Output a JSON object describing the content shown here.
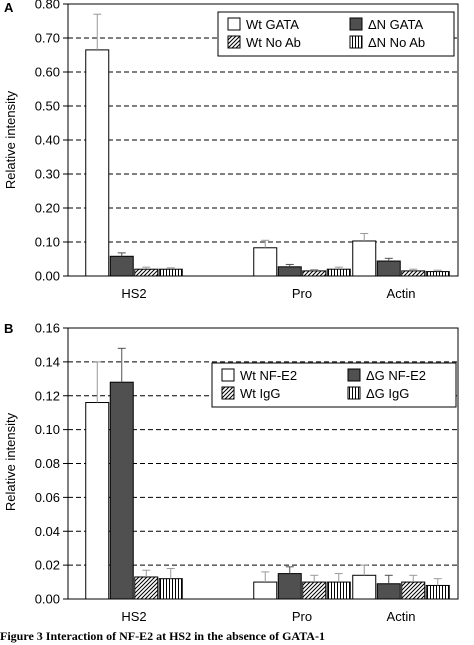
{
  "colors": {
    "white": "#ffffff",
    "dark": "#505050",
    "axis": "#000000"
  },
  "caption": "Figure 3  Interaction of NF-E2 at HS2 in the absence of GATA-1",
  "chart_data": [
    {
      "type": "bar",
      "panel": "A",
      "ylabel": "Relative intensity",
      "xlabel": "",
      "ylim": [
        0,
        0.8
      ],
      "yticks": [
        "0.00",
        "0.10",
        "0.20",
        "0.30",
        "0.40",
        "0.50",
        "0.60",
        "0.70",
        "0.80"
      ],
      "grid": "dashed horizontal",
      "legend_position": "top-right",
      "categories": [
        "HS2",
        "Pro",
        "Actin"
      ],
      "series": [
        {
          "name": "Wt GATA",
          "fill": "white",
          "values": [
            0.665,
            0.083,
            0.103
          ],
          "errors": [
            0.105,
            0.022,
            0.022
          ]
        },
        {
          "name": "ΔN GATA",
          "fill": "dark",
          "values": [
            0.058,
            0.027,
            0.044
          ],
          "errors": [
            0.01,
            0.007,
            0.008
          ]
        },
        {
          "name": "Wt No Ab",
          "fill": "diagonal",
          "values": [
            0.02,
            0.015,
            0.015
          ],
          "errors": [
            0.006,
            0.004,
            0.005
          ]
        },
        {
          "name": "ΔN No Ab",
          "fill": "vertical",
          "values": [
            0.02,
            0.02,
            0.013
          ],
          "errors": [
            0.004,
            0.006,
            0.004
          ]
        }
      ]
    },
    {
      "type": "bar",
      "panel": "B",
      "ylabel": "Relative intensity",
      "xlabel": "",
      "ylim": [
        0,
        0.16
      ],
      "yticks": [
        "0.00",
        "0.02",
        "0.04",
        "0.06",
        "0.08",
        "0.10",
        "0.12",
        "0.14",
        "0.16"
      ],
      "grid": "dashed horizontal",
      "legend_position": "top-right",
      "categories": [
        "HS2",
        "Pro",
        "Actin"
      ],
      "series": [
        {
          "name": "Wt NF-E2",
          "fill": "white",
          "values": [
            0.116,
            0.01,
            0.014
          ],
          "errors": [
            0.024,
            0.006,
            0.006
          ]
        },
        {
          "name": "ΔG NF-E2",
          "fill": "dark",
          "values": [
            0.128,
            0.015,
            0.009
          ],
          "errors": [
            0.02,
            0.004,
            0.005
          ]
        },
        {
          "name": "Wt IgG",
          "fill": "diagonal",
          "values": [
            0.013,
            0.01,
            0.01
          ],
          "errors": [
            0.004,
            0.004,
            0.004
          ]
        },
        {
          "name": "ΔG IgG",
          "fill": "vertical",
          "values": [
            0.012,
            0.01,
            0.008
          ],
          "errors": [
            0.006,
            0.005,
            0.004
          ]
        }
      ]
    }
  ]
}
